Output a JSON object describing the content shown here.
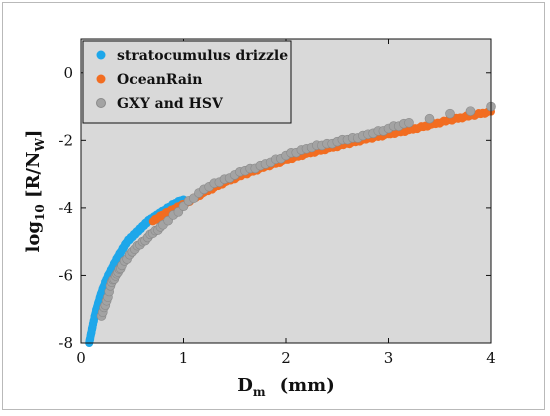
{
  "chart_data": {
    "type": "scatter",
    "xlabel": {
      "main": "D",
      "sub": "m",
      "unit": "(mm)"
    },
    "ylabel": {
      "pre": "log",
      "sub1": "10",
      "mid": " [R/N",
      "sub2": "W",
      "post": "]"
    },
    "xlim": [
      0,
      4
    ],
    "ylim": [
      -8,
      1
    ],
    "xticks": [
      0,
      1,
      2,
      3,
      4
    ],
    "yticks": [
      -8,
      -6,
      -4,
      -2,
      0
    ],
    "grid": false,
    "legend_position": "top-left",
    "plot_background": "#d9d9d9",
    "series": [
      {
        "name": "stratocumulus drizzle",
        "color": "#1ea7ea",
        "x": [
          0.08,
          0.1,
          0.12,
          0.15,
          0.18,
          0.2,
          0.25,
          0.3,
          0.35,
          0.4,
          0.45,
          0.5,
          0.55,
          0.6,
          0.65,
          0.7,
          0.75,
          0.8,
          0.9,
          1.0
        ],
        "y": [
          -8.0,
          -7.7,
          -7.4,
          -7.0,
          -6.7,
          -6.5,
          -6.1,
          -5.8,
          -5.5,
          -5.25,
          -5.0,
          -4.85,
          -4.7,
          -4.55,
          -4.4,
          -4.3,
          -4.2,
          -4.1,
          -3.9,
          -3.75
        ]
      },
      {
        "name": "OceanRain",
        "color": "#f26d21",
        "x": [
          0.7,
          0.8,
          0.9,
          1.0,
          1.2,
          1.4,
          1.6,
          1.8,
          2.0,
          2.2,
          2.4,
          2.6,
          2.8,
          3.0,
          3.2,
          3.4,
          3.6,
          3.8,
          4.0
        ],
        "y": [
          -4.4,
          -4.2,
          -4.05,
          -3.9,
          -3.55,
          -3.25,
          -3.0,
          -2.78,
          -2.58,
          -2.4,
          -2.25,
          -2.1,
          -1.95,
          -1.82,
          -1.7,
          -1.55,
          -1.4,
          -1.27,
          -1.15
        ]
      },
      {
        "name": "GXY and HSV",
        "color": "#a3a3a3",
        "x": [
          0.2,
          0.25,
          0.3,
          0.35,
          0.4,
          0.5,
          0.6,
          0.7,
          0.8,
          1.0,
          1.2,
          1.4,
          1.6,
          1.8,
          2.0,
          2.2,
          2.4,
          2.6,
          2.8,
          3.0,
          3.2,
          4.0
        ],
        "y": [
          -7.2,
          -6.75,
          -6.2,
          -5.95,
          -5.7,
          -5.3,
          -5.0,
          -4.75,
          -4.5,
          -3.95,
          -3.45,
          -3.15,
          -2.9,
          -2.7,
          -2.45,
          -2.25,
          -2.1,
          -1.98,
          -1.82,
          -1.65,
          -1.48,
          -1.0
        ]
      }
    ]
  }
}
